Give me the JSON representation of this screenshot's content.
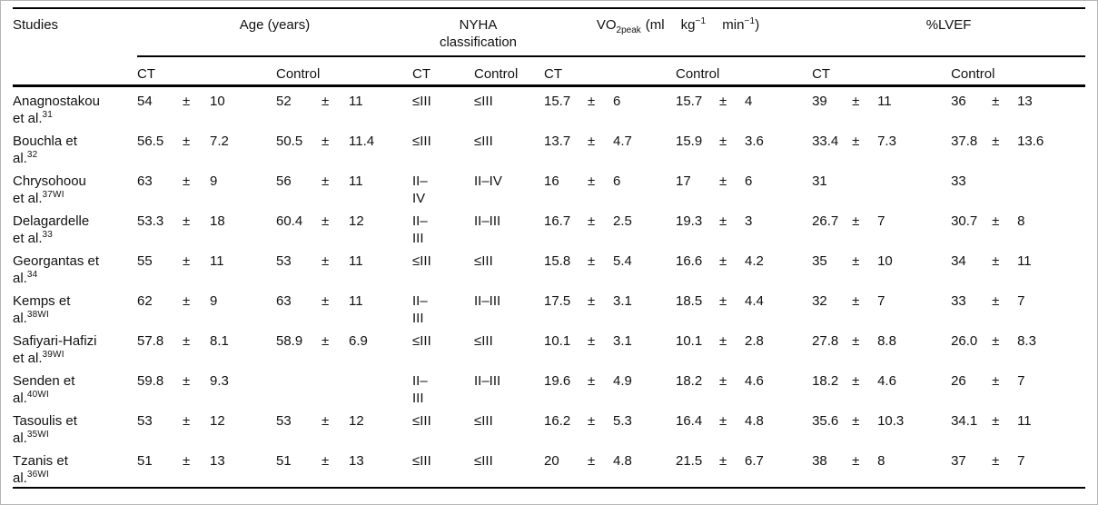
{
  "table": {
    "col_headers": {
      "studies": "Studies",
      "age": "Age (years)",
      "nyha": "NYHA classification",
      "vo2": {
        "base": "VO",
        "sub": "2peak",
        "ml": "(ml",
        "kg": "kg",
        "kg_sup": "−1",
        "min": "min",
        "min_sup": "−1",
        "close": ")"
      },
      "lvef": "%LVEF",
      "ct": "CT",
      "control": "Control"
    },
    "rows": [
      {
        "study": [
          "Anagnostakou",
          "et al."
        ],
        "sup": "31",
        "age_ct": [
          "54",
          "±",
          "10"
        ],
        "age_c": [
          "52",
          "±",
          "11"
        ],
        "nyha_ct": [
          "≤III"
        ],
        "nyha_c": [
          "≤III"
        ],
        "vo2_ct": [
          "15.7",
          "±",
          "6"
        ],
        "vo2_c": [
          "15.7",
          "±",
          "4"
        ],
        "lvef_ct": [
          "39",
          "±",
          "11"
        ],
        "lvef_c": [
          "36",
          "±",
          "13"
        ]
      },
      {
        "study": [
          "Bouchla et",
          "al."
        ],
        "sup": "32",
        "age_ct": [
          "56.5",
          "±",
          "7.2"
        ],
        "age_c": [
          "50.5",
          "±",
          "11.4"
        ],
        "nyha_ct": [
          "≤III"
        ],
        "nyha_c": [
          "≤III"
        ],
        "vo2_ct": [
          "13.7",
          "±",
          "4.7"
        ],
        "vo2_c": [
          "15.9",
          "±",
          "3.6"
        ],
        "lvef_ct": [
          "33.4",
          "±",
          "7.3"
        ],
        "lvef_c": [
          "37.8",
          "±",
          "13.6"
        ]
      },
      {
        "study": [
          "Chrysohoou",
          "et al."
        ],
        "sup": "37WI",
        "age_ct": [
          "63",
          "±",
          "9"
        ],
        "age_c": [
          "56",
          "±",
          "11"
        ],
        "nyha_ct": [
          "II–",
          "IV"
        ],
        "nyha_c": [
          "II–IV"
        ],
        "vo2_ct": [
          "16",
          "±",
          "6"
        ],
        "vo2_c": [
          "17",
          "±",
          "6"
        ],
        "lvef_ct": [
          "31",
          "",
          ""
        ],
        "lvef_c": [
          "33",
          "",
          ""
        ]
      },
      {
        "study": [
          "Delagardelle",
          "et al."
        ],
        "sup": "33",
        "age_ct": [
          "53.3",
          "±",
          "18"
        ],
        "age_c": [
          "60.4",
          "±",
          "12"
        ],
        "nyha_ct": [
          "II–",
          "III"
        ],
        "nyha_c": [
          "II–III"
        ],
        "vo2_ct": [
          "16.7",
          "±",
          "2.5"
        ],
        "vo2_c": [
          "19.3",
          "±",
          "3"
        ],
        "lvef_ct": [
          "26.7",
          "±",
          "7"
        ],
        "lvef_c": [
          "30.7",
          "±",
          "8"
        ]
      },
      {
        "study": [
          "Georgantas et",
          "al."
        ],
        "sup": "34",
        "age_ct": [
          "55",
          "±",
          "11"
        ],
        "age_c": [
          "53",
          "±",
          "11"
        ],
        "nyha_ct": [
          "≤III"
        ],
        "nyha_c": [
          "≤III"
        ],
        "vo2_ct": [
          "15.8",
          "±",
          "5.4"
        ],
        "vo2_c": [
          "16.6",
          "±",
          "4.2"
        ],
        "lvef_ct": [
          "35",
          "±",
          "10"
        ],
        "lvef_c": [
          "34",
          "±",
          "11"
        ]
      },
      {
        "study": [
          "Kemps et",
          "al."
        ],
        "sup": "38WI",
        "age_ct": [
          "62",
          "±",
          "9"
        ],
        "age_c": [
          "63",
          "±",
          "11"
        ],
        "nyha_ct": [
          "II–",
          "III"
        ],
        "nyha_c": [
          "II–III"
        ],
        "vo2_ct": [
          "17.5",
          "±",
          "3.1"
        ],
        "vo2_c": [
          "18.5",
          "±",
          "4.4"
        ],
        "lvef_ct": [
          "32",
          "±",
          "7"
        ],
        "lvef_c": [
          "33",
          "±",
          "7"
        ]
      },
      {
        "study": [
          "Safiyari-Hafizi",
          "et al."
        ],
        "sup": "39WI",
        "age_ct": [
          "57.8",
          "±",
          "8.1"
        ],
        "age_c": [
          "58.9",
          "±",
          "6.9"
        ],
        "nyha_ct": [
          "≤III"
        ],
        "nyha_c": [
          "≤III"
        ],
        "vo2_ct": [
          "10.1",
          "±",
          "3.1"
        ],
        "vo2_c": [
          "10.1",
          "±",
          "2.8"
        ],
        "lvef_ct": [
          "27.8",
          "±",
          "8.8"
        ],
        "lvef_c": [
          "26.0",
          "±",
          "8.3"
        ]
      },
      {
        "study": [
          "Senden et",
          "al."
        ],
        "sup": "40WI",
        "age_ct": [
          "59.8",
          "±",
          "9.3"
        ],
        "age_c": [
          "",
          "",
          ""
        ],
        "nyha_ct": [
          "II–",
          "III"
        ],
        "nyha_c": [
          "II–III"
        ],
        "vo2_ct": [
          "19.6",
          "±",
          "4.9"
        ],
        "vo2_c": [
          "18.2",
          "±",
          "4.6"
        ],
        "lvef_ct": [
          "18.2",
          "±",
          "4.6"
        ],
        "lvef_c": [
          "26",
          "±",
          "7"
        ]
      },
      {
        "study": [
          "Tasoulis et",
          "al."
        ],
        "sup": "35WI",
        "age_ct": [
          "53",
          "±",
          "12"
        ],
        "age_c": [
          "53",
          "±",
          "12"
        ],
        "nyha_ct": [
          "≤III"
        ],
        "nyha_c": [
          "≤III"
        ],
        "vo2_ct": [
          "16.2",
          "±",
          "5.3"
        ],
        "vo2_c": [
          "16.4",
          "±",
          "4.8"
        ],
        "lvef_ct": [
          "35.6",
          "±",
          "10.3"
        ],
        "lvef_c": [
          "34.1",
          "±",
          "11"
        ]
      },
      {
        "study": [
          "Tzanis et",
          "al."
        ],
        "sup": "36WI",
        "age_ct": [
          "51",
          "±",
          "13"
        ],
        "age_c": [
          "51",
          "±",
          "13"
        ],
        "nyha_ct": [
          "≤III"
        ],
        "nyha_c": [
          "≤III"
        ],
        "vo2_ct": [
          "20",
          "±",
          "4.8"
        ],
        "vo2_c": [
          "21.5",
          "±",
          "6.7"
        ],
        "lvef_ct": [
          "38",
          "±",
          "8"
        ],
        "lvef_c": [
          "37",
          "±",
          "7"
        ]
      }
    ]
  }
}
